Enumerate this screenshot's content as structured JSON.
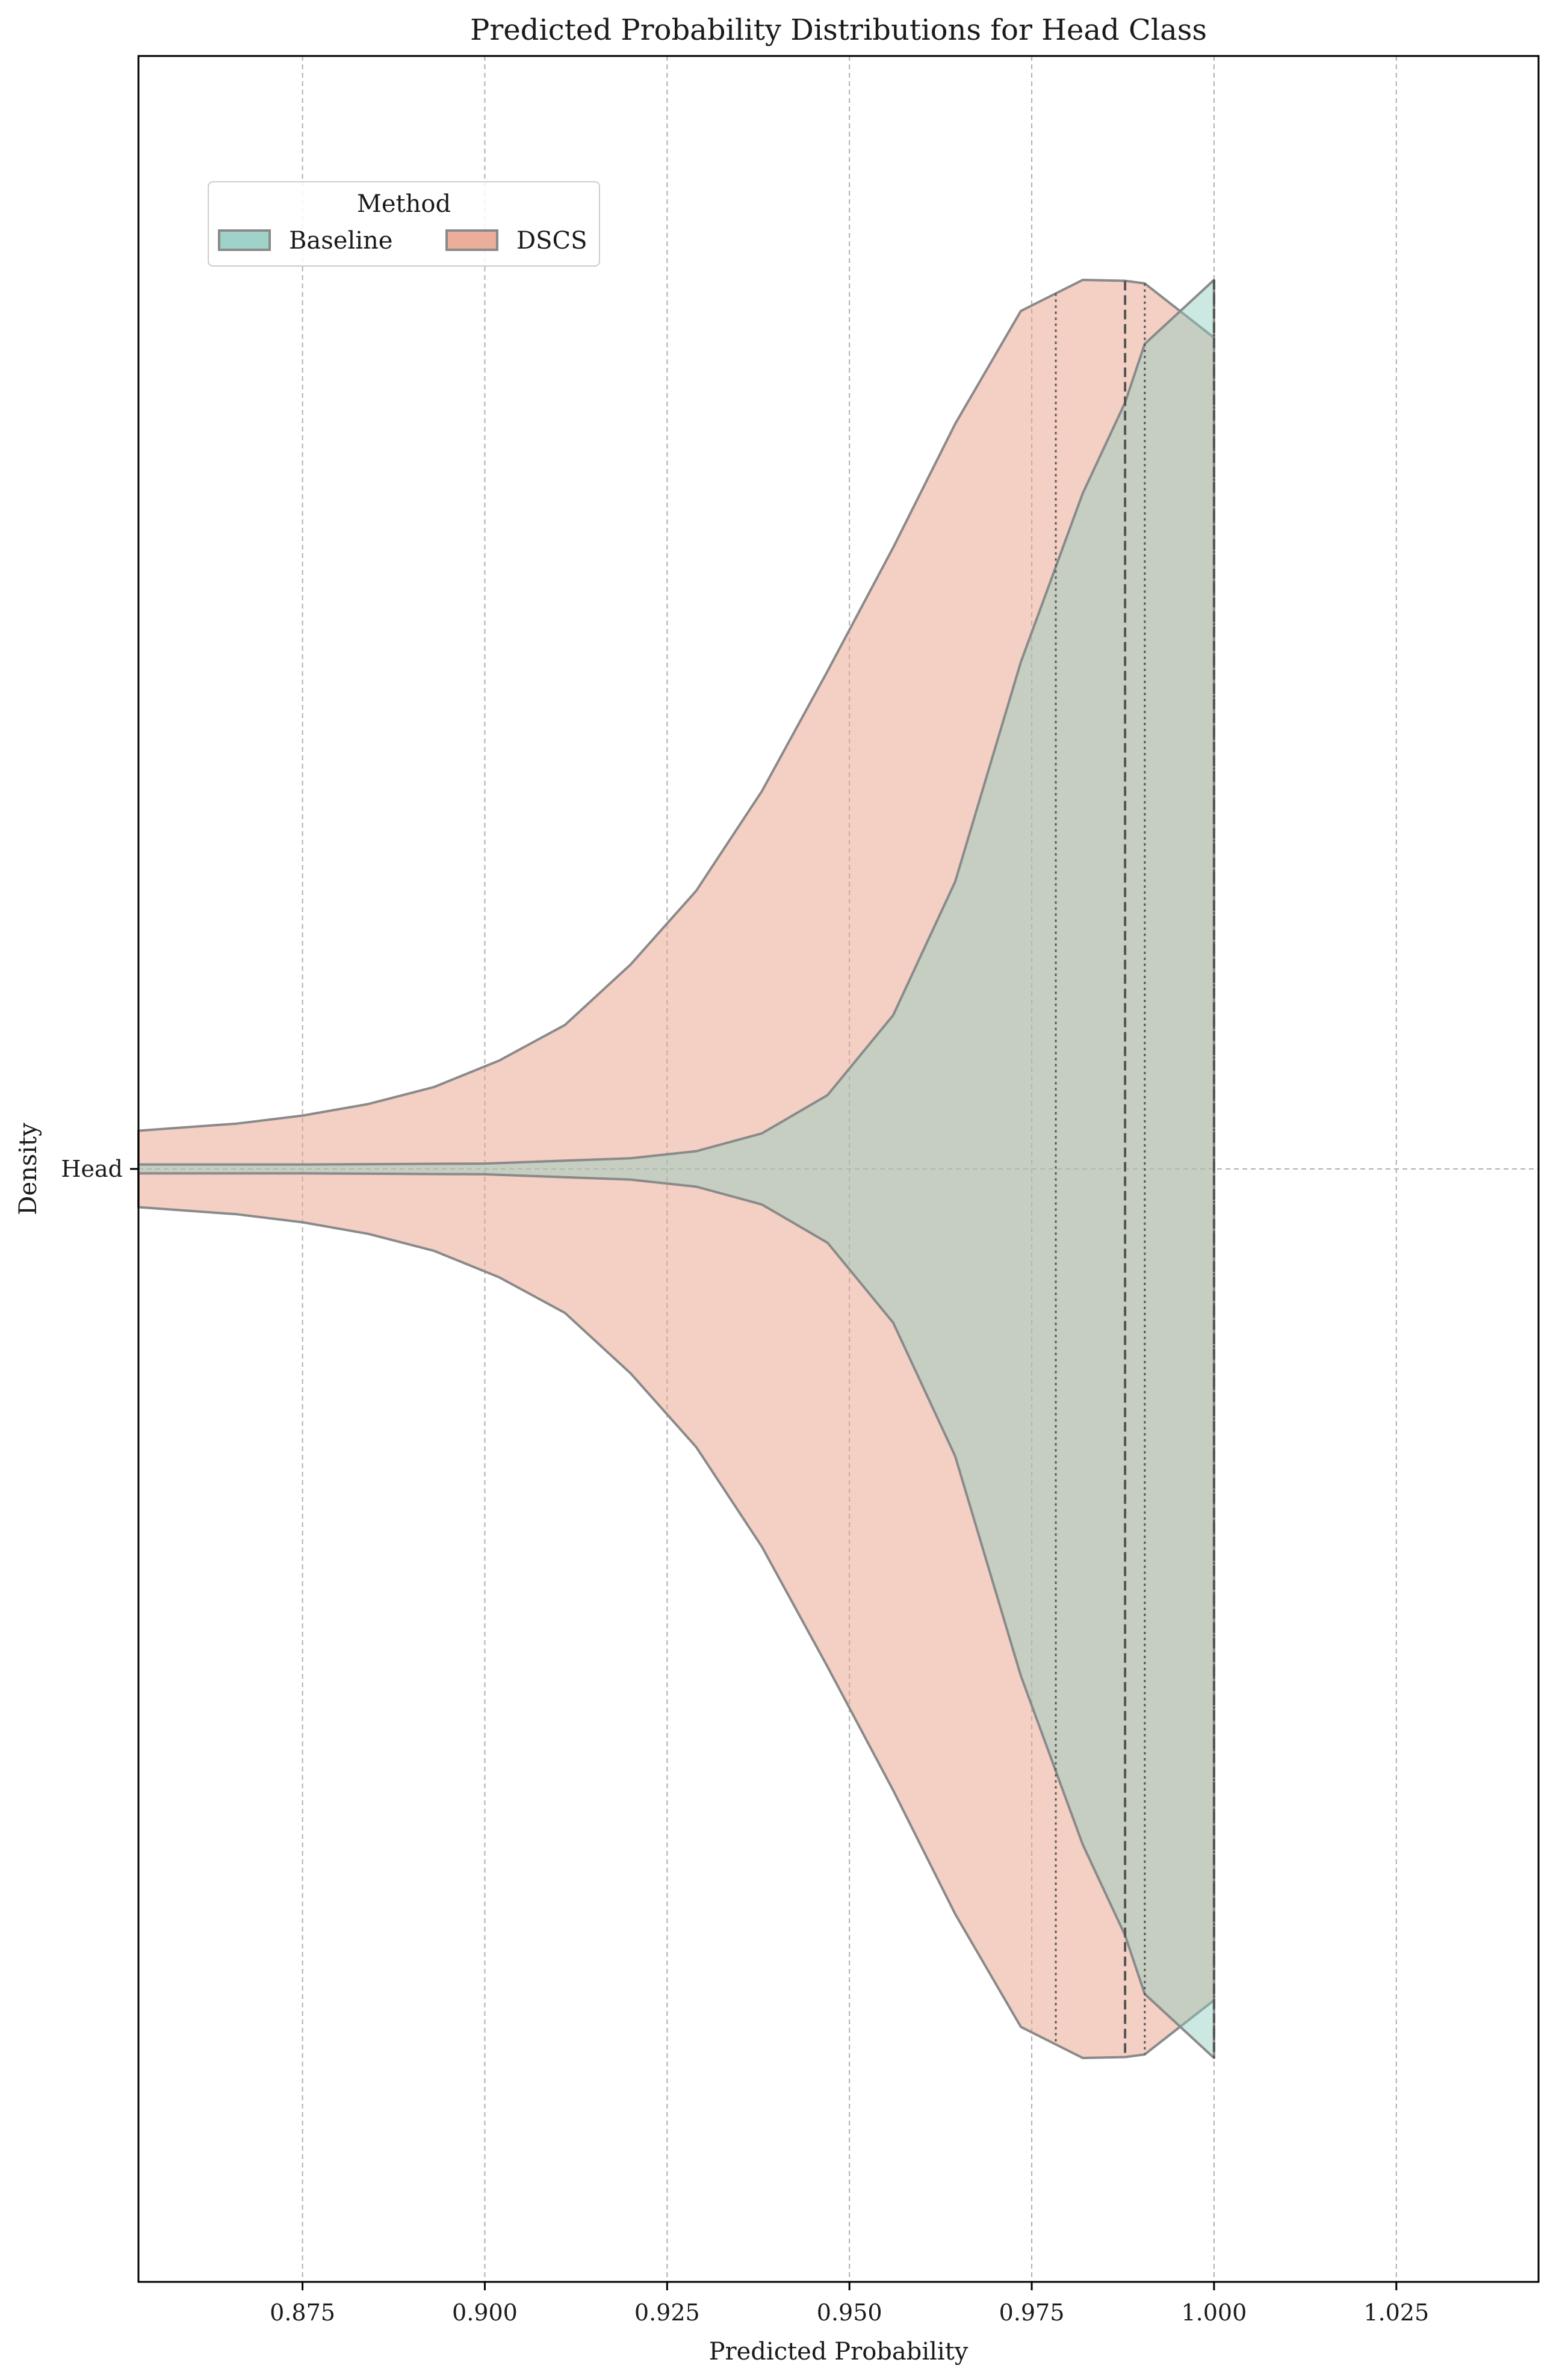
{
  "chart_data": {
    "type": "violin",
    "title": "Predicted Probability Distributions for Head Class",
    "xlabel": "Predicted Probability",
    "ylabel": "Density",
    "xlim": [
      0.8525,
      1.0445
    ],
    "x_ticks": [
      0.875,
      0.9,
      0.925,
      0.95,
      0.975,
      1.0,
      1.025
    ],
    "x_tick_labels": [
      "0.875",
      "0.900",
      "0.925",
      "0.950",
      "0.975",
      "1.000",
      "1.025"
    ],
    "categories": [
      "Head"
    ],
    "grid": true,
    "legend": {
      "title": "Method",
      "position": "upper-left",
      "entries": [
        "Baseline",
        "DSCS"
      ]
    },
    "colors": {
      "Baseline": "#8ecbbf",
      "DSCS": "#e8a089",
      "outline": "#8a8a8a",
      "quartile_line": "#555555",
      "grid": "#b0b0b0"
    },
    "series": [
      {
        "name": "Baseline",
        "density_x": [
          0.8525,
          0.875,
          0.9,
          0.92,
          0.929,
          0.938,
          0.947,
          0.956,
          0.9645,
          0.9735,
          0.982,
          0.9878,
          0.9905,
          1.0
        ],
        "density_half_width": [
          0.005,
          0.005,
          0.006,
          0.012,
          0.02,
          0.04,
          0.083,
          0.173,
          0.323,
          0.57,
          0.76,
          0.862,
          0.928,
          1.0
        ],
        "median": 1.0,
        "q1": 1.0,
        "q3": 1.0
      },
      {
        "name": "DSCS",
        "density_x": [
          0.8525,
          0.866,
          0.875,
          0.884,
          0.893,
          0.902,
          0.911,
          0.92,
          0.929,
          0.938,
          0.947,
          0.956,
          0.9645,
          0.9735,
          0.982,
          0.9878,
          0.9905,
          1.0
        ],
        "density_half_width": [
          0.043,
          0.051,
          0.06,
          0.073,
          0.092,
          0.122,
          0.162,
          0.23,
          0.313,
          0.425,
          0.56,
          0.699,
          0.838,
          0.965,
          1.0,
          0.999,
          0.996,
          0.935
        ],
        "median": 0.9878,
        "q1": 0.9783,
        "q3": 0.9905
      }
    ]
  }
}
